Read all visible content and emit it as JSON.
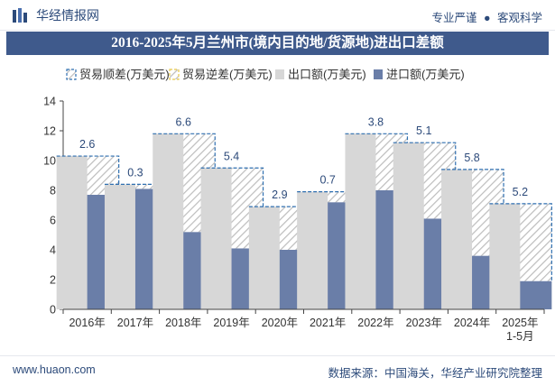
{
  "header": {
    "brand": "华经情报网",
    "tagline_left": "专业严谨",
    "tagline_sep": "●",
    "tagline_right": "客观科学"
  },
  "footer": {
    "website": "www.huaon.com",
    "source": "数据来源：中国海关，华经产业研究院整理"
  },
  "colors": {
    "header_bg": "#3f5a8c",
    "export_bar": "#d7d7d7",
    "import_bar": "#6a7ea8",
    "surplus_border": "#2f6fb0",
    "deficit_border": "#e6c84a",
    "label": "#2c4a7a"
  },
  "chart_data": {
    "type": "bar",
    "title": "2016-2025年5月兰州市(境内目的地/货源地)进出口差额",
    "categories": [
      "2016年",
      "2017年",
      "2018年",
      "2019年",
      "2020年",
      "2021年",
      "2022年",
      "2023年",
      "2024年",
      "2025年\n1-5月"
    ],
    "series": [
      {
        "name": "出口额(万美元)",
        "values": [
          10.3,
          8.4,
          11.8,
          9.5,
          6.9,
          7.9,
          11.8,
          11.2,
          9.4,
          7.1
        ]
      },
      {
        "name": "进口额(万美元)",
        "values": [
          7.7,
          8.1,
          5.2,
          4.1,
          4.0,
          7.2,
          8.0,
          6.1,
          3.6,
          1.9
        ]
      },
      {
        "name": "贸易顺差(万美元)",
        "values": [
          2.6,
          0.3,
          6.6,
          5.4,
          2.9,
          0.7,
          3.8,
          5.1,
          5.8,
          5.2
        ]
      },
      {
        "name": "贸易逆差(万美元)",
        "values": [
          0,
          0,
          0,
          0,
          0,
          0,
          0,
          0,
          0,
          0
        ]
      }
    ],
    "data_labels": [
      "2.6",
      "0.3",
      "6.6",
      "5.4",
      "2.9",
      "0.7",
      "3.8",
      "5.1",
      "5.8",
      "5.2"
    ],
    "yticks": [
      "0",
      "2",
      "4",
      "6",
      "8",
      "10",
      "12",
      "14"
    ],
    "ylim": [
      0,
      14
    ],
    "legend_position": "top",
    "grid": false
  }
}
